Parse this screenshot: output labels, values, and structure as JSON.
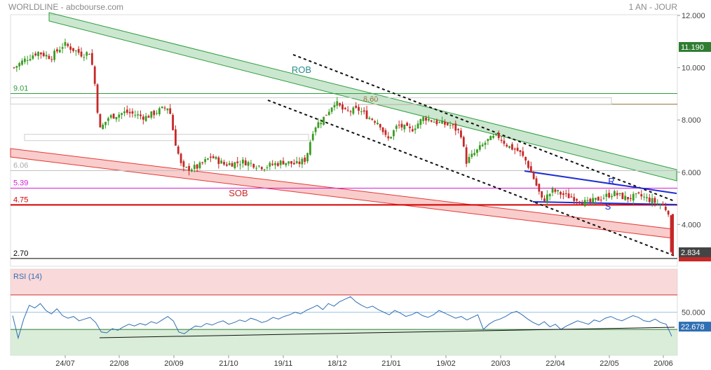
{
  "header": {
    "title": "WORLDLINE - abcbourse.com",
    "period": "1 AN - JOUR"
  },
  "colors": {
    "up": "#3a9d23",
    "down": "#c62828",
    "rob": "#2e9e3e",
    "sob": "#e53935",
    "channel_rs": "#1f2fd1",
    "rsi_line": "#2f6fb3",
    "price_tag": "#444444",
    "last_tag_green": "#2e7d32",
    "last_tag_red": "#c62828"
  },
  "chart_data": [
    {
      "type": "candlestick",
      "ylim": [
        2.4,
        12.0
      ],
      "y_ticks": [
        "12.000",
        "10.000",
        "8.000",
        "6.000",
        "4.000"
      ],
      "x_ticks": [
        "24/07",
        "22/08",
        "20/09",
        "21/10",
        "19/11",
        "18/12",
        "21/01",
        "19/02",
        "20/03",
        "22/04",
        "22/05",
        "20/06"
      ],
      "horizontal_levels": [
        {
          "label": "9.01",
          "value": 9.01,
          "color": "#2e9e3e"
        },
        {
          "label": "8.60",
          "value": 8.6,
          "color": "#8d6e2f"
        },
        {
          "label": "6.06",
          "value": 6.06,
          "color": "#c0c0c0"
        },
        {
          "label": "5.39",
          "value": 5.39,
          "color": "#d81bd8"
        },
        {
          "label": "4.75",
          "value": 4.75,
          "color": "#d50000"
        },
        {
          "label": "2.70",
          "value": 2.7,
          "color": "#000000"
        }
      ],
      "annotations": [
        "ROB",
        "SOB",
        "R",
        "S"
      ],
      "price_tags": [
        {
          "value": "11.190",
          "color": "green"
        },
        {
          "value": "2.834",
          "color": "gray"
        }
      ],
      "close_series": [
        {
          "x": 0,
          "y": 10.0
        },
        {
          "x": 8,
          "y": 10.3
        },
        {
          "x": 18,
          "y": 10.6
        },
        {
          "x": 28,
          "y": 10.4
        },
        {
          "x": 38,
          "y": 10.9
        },
        {
          "x": 45,
          "y": 10.7
        },
        {
          "x": 52,
          "y": 10.5
        },
        {
          "x": 58,
          "y": 10.6
        },
        {
          "x": 62,
          "y": 9.2
        },
        {
          "x": 65,
          "y": 7.6
        },
        {
          "x": 72,
          "y": 8.1
        },
        {
          "x": 85,
          "y": 8.3
        },
        {
          "x": 100,
          "y": 8.1
        },
        {
          "x": 112,
          "y": 8.4
        },
        {
          "x": 118,
          "y": 8.5
        },
        {
          "x": 122,
          "y": 7.3
        },
        {
          "x": 128,
          "y": 6.1
        },
        {
          "x": 140,
          "y": 6.2
        },
        {
          "x": 150,
          "y": 6.6
        },
        {
          "x": 160,
          "y": 6.3
        },
        {
          "x": 175,
          "y": 6.4
        },
        {
          "x": 190,
          "y": 6.2
        },
        {
          "x": 205,
          "y": 6.4
        },
        {
          "x": 215,
          "y": 6.3
        },
        {
          "x": 222,
          "y": 6.5
        },
        {
          "x": 228,
          "y": 7.7
        },
        {
          "x": 236,
          "y": 8.1
        },
        {
          "x": 244,
          "y": 8.7
        },
        {
          "x": 252,
          "y": 8.3
        },
        {
          "x": 262,
          "y": 8.4
        },
        {
          "x": 270,
          "y": 8.1
        },
        {
          "x": 278,
          "y": 7.9
        },
        {
          "x": 284,
          "y": 7.2
        },
        {
          "x": 292,
          "y": 7.8
        },
        {
          "x": 302,
          "y": 7.6
        },
        {
          "x": 312,
          "y": 8.1
        },
        {
          "x": 322,
          "y": 7.9
        },
        {
          "x": 332,
          "y": 7.8
        },
        {
          "x": 340,
          "y": 7.5
        },
        {
          "x": 344,
          "y": 6.4
        },
        {
          "x": 352,
          "y": 6.8
        },
        {
          "x": 360,
          "y": 7.2
        },
        {
          "x": 368,
          "y": 7.4
        },
        {
          "x": 376,
          "y": 7.0
        },
        {
          "x": 384,
          "y": 6.8
        },
        {
          "x": 390,
          "y": 6.4
        },
        {
          "x": 396,
          "y": 5.7
        },
        {
          "x": 402,
          "y": 4.9
        },
        {
          "x": 410,
          "y": 5.3
        },
        {
          "x": 420,
          "y": 5.1
        },
        {
          "x": 428,
          "y": 5.0
        },
        {
          "x": 436,
          "y": 4.8
        },
        {
          "x": 446,
          "y": 5.0
        },
        {
          "x": 456,
          "y": 5.2
        },
        {
          "x": 466,
          "y": 5.0
        },
        {
          "x": 476,
          "y": 5.1
        },
        {
          "x": 486,
          "y": 4.9
        },
        {
          "x": 494,
          "y": 4.7
        },
        {
          "x": 498,
          "y": 4.5
        },
        {
          "x": 500,
          "y": 2.83
        }
      ]
    },
    {
      "type": "line",
      "name": "RSI (14)",
      "ylim": [
        0,
        100
      ],
      "y_ticks": [
        "50.000"
      ],
      "overbought": 70,
      "oversold": 30,
      "last_value": "22.678",
      "values": [
        46,
        20,
        42,
        58,
        55,
        60,
        52,
        48,
        54,
        46,
        43,
        45,
        40,
        42,
        44,
        38,
        27,
        26,
        31,
        29,
        33,
        36,
        34,
        37,
        35,
        39,
        37,
        41,
        45,
        40,
        27,
        25,
        30,
        34,
        33,
        37,
        35,
        38,
        40,
        36,
        38,
        41,
        39,
        43,
        41,
        38,
        40,
        44,
        42,
        45,
        47,
        50,
        48,
        52,
        55,
        58,
        53,
        60,
        57,
        62,
        65,
        68,
        62,
        58,
        55,
        57,
        53,
        50,
        47,
        52,
        49,
        45,
        47,
        50,
        46,
        44,
        47,
        52,
        49,
        46,
        43,
        45,
        41,
        44,
        47,
        30,
        36,
        40,
        42,
        45,
        49,
        51,
        47,
        42,
        38,
        35,
        39,
        33,
        36,
        30,
        34,
        37,
        40,
        38,
        36,
        41,
        39,
        43,
        45,
        42,
        40,
        43,
        46,
        44,
        40,
        39,
        42,
        38,
        36,
        22
      ]
    }
  ]
}
